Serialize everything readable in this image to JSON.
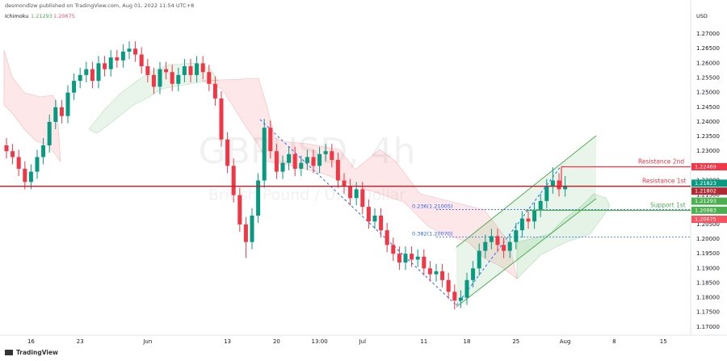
{
  "header": {
    "published": "desmondlzw published on TradingView.com, Aug 01, 2022 11:54 UTC+8",
    "footer": "TradingView"
  },
  "chart_data": {
    "type": "candlestick",
    "watermark": "GBPUSD, 4h",
    "watermark_subtitle": "British Pound / U.S. Dollar",
    "currency": "USD",
    "up_color": "#089981",
    "down_color": "#f23645",
    "indicator": {
      "name": "Ichimoku",
      "values": [
        1.21293,
        1.20675
      ],
      "colors": [
        "#4caf50",
        "#f7525f"
      ]
    },
    "categories": [
      null,
      null,
      null,
      null,
      "16",
      null,
      null,
      null,
      null,
      null,
      null,
      null,
      "23",
      null,
      null,
      null,
      null,
      null,
      null,
      null,
      null,
      null,
      null,
      "Jun",
      null,
      null,
      null,
      null,
      null,
      null,
      null,
      null,
      null,
      null,
      null,
      null,
      "13",
      null,
      null,
      null,
      null,
      null,
      null,
      null,
      "20",
      null,
      null,
      null,
      null,
      null,
      null,
      "13:00",
      null,
      null,
      null,
      null,
      null,
      null,
      "Jul",
      null,
      null,
      null,
      null,
      null,
      null,
      null,
      null,
      null,
      "11",
      null,
      null,
      null,
      null,
      null,
      null,
      "18",
      null,
      null,
      null,
      null,
      null,
      null,
      null,
      "25",
      null,
      null,
      null,
      null,
      null,
      null,
      null,
      "Aug",
      null,
      null,
      null,
      null,
      null,
      null,
      null,
      "8",
      null,
      null,
      null,
      null,
      null,
      null,
      null,
      "15"
    ],
    "open": [
      1.232,
      1.23,
      1.228,
      1.224,
      1.2195,
      1.223,
      1.228,
      1.232,
      1.24,
      1.245,
      1.242,
      1.25,
      1.254,
      1.256,
      1.258,
      1.254,
      1.26,
      1.258,
      1.262,
      1.261,
      1.264,
      1.265,
      1.263,
      1.259,
      1.256,
      1.252,
      1.258,
      1.257,
      1.253,
      1.256,
      1.259,
      1.256,
      1.26,
      1.257,
      1.253,
      1.248,
      1.234,
      1.225,
      1.215,
      1.205,
      1.199,
      1.208,
      1.22,
      1.238,
      1.23,
      1.223,
      1.226,
      1.229,
      1.224,
      1.226,
      1.228,
      1.225,
      1.229,
      1.23,
      1.227,
      1.22,
      1.218,
      1.214,
      1.217,
      1.211,
      1.206,
      1.208,
      1.203,
      1.198,
      1.195,
      1.192,
      1.195,
      1.193,
      1.194,
      1.19,
      1.188,
      1.189,
      1.186,
      1.182,
      1.179,
      1.18,
      1.186,
      1.19,
      1.196,
      1.199,
      1.201,
      1.198,
      1.196,
      1.199,
      1.203,
      1.207,
      1.206,
      1.21,
      1.213,
      1.218,
      1.22,
      1.217,
      null,
      null,
      null,
      null,
      null,
      null,
      null,
      null,
      null,
      null,
      null,
      null,
      null,
      null,
      null,
      null
    ],
    "high": [
      1.2345,
      1.2325,
      1.2305,
      1.2265,
      1.2255,
      1.2305,
      1.2345,
      1.2425,
      1.2475,
      1.2475,
      1.2525,
      1.2565,
      1.2585,
      1.2605,
      1.2605,
      1.2625,
      1.2625,
      1.2645,
      1.2645,
      1.2665,
      1.2675,
      1.2675,
      1.2655,
      1.2615,
      1.2585,
      1.2605,
      1.2605,
      1.2595,
      1.2585,
      1.2615,
      1.2615,
      1.2625,
      1.2625,
      1.2595,
      1.2555,
      1.2505,
      1.2365,
      1.2275,
      1.2175,
      1.2075,
      1.2105,
      1.2225,
      1.241,
      1.2405,
      1.2325,
      1.2285,
      1.2315,
      1.2315,
      1.2285,
      1.2305,
      1.2305,
      1.2315,
      1.2325,
      1.2325,
      1.2295,
      1.2225,
      1.2205,
      1.2195,
      1.2195,
      1.2135,
      1.2105,
      1.2105,
      1.2055,
      1.2005,
      1.1975,
      1.1975,
      1.1975,
      1.1965,
      1.1965,
      1.1925,
      1.1915,
      1.1915,
      1.1885,
      1.1845,
      1.1825,
      1.1885,
      1.1925,
      1.1985,
      1.2015,
      1.2035,
      1.2035,
      1.2005,
      1.2015,
      1.2055,
      1.2095,
      1.2095,
      1.2125,
      1.2155,
      1.2205,
      1.2245,
      1.2225,
      1.2215,
      null,
      null,
      null,
      null,
      null,
      null,
      null,
      null,
      null,
      null,
      null,
      null,
      null,
      null,
      null,
      null
    ],
    "low": [
      1.2275,
      1.2255,
      1.2215,
      1.217,
      1.217,
      1.2205,
      1.2255,
      1.2295,
      1.2375,
      1.2395,
      1.2395,
      1.2475,
      1.2515,
      1.2535,
      1.2515,
      1.2515,
      1.2555,
      1.2555,
      1.2585,
      1.2585,
      1.2615,
      1.2605,
      1.2565,
      1.2535,
      1.2495,
      1.2495,
      1.2545,
      1.2505,
      1.2505,
      1.2535,
      1.2535,
      1.2535,
      1.2545,
      1.2505,
      1.2455,
      1.2315,
      1.2225,
      1.2125,
      1.2025,
      1.1935,
      1.1965,
      1.2055,
      1.2175,
      1.2275,
      1.2205,
      1.2205,
      1.2235,
      1.2215,
      1.2215,
      1.2235,
      1.2225,
      1.2225,
      1.2265,
      1.2245,
      1.2175,
      1.2155,
      1.2115,
      1.2115,
      1.2085,
      1.2035,
      1.2035,
      1.2005,
      1.1955,
      1.1925,
      1.1895,
      1.1895,
      1.1905,
      1.1905,
      1.1875,
      1.1855,
      1.1855,
      1.1835,
      1.1795,
      1.176,
      1.1765,
      1.1775,
      1.1835,
      1.1875,
      1.1935,
      1.1965,
      1.1955,
      1.1935,
      1.1935,
      1.1965,
      1.2005,
      1.2035,
      1.2035,
      1.2075,
      1.2105,
      1.2155,
      1.2145,
      1.2145,
      null,
      null,
      null,
      null,
      null,
      null,
      null,
      null,
      null,
      null,
      null,
      null,
      null,
      null,
      null,
      null
    ],
    "close": [
      1.23,
      1.228,
      1.224,
      1.2195,
      1.223,
      1.228,
      1.232,
      1.24,
      1.245,
      1.242,
      1.25,
      1.254,
      1.256,
      1.258,
      1.254,
      1.26,
      1.258,
      1.262,
      1.261,
      1.264,
      1.265,
      1.263,
      1.259,
      1.256,
      1.252,
      1.258,
      1.257,
      1.253,
      1.256,
      1.259,
      1.256,
      1.26,
      1.257,
      1.253,
      1.248,
      1.234,
      1.225,
      1.215,
      1.205,
      1.199,
      1.208,
      1.22,
      1.238,
      1.23,
      1.223,
      1.226,
      1.229,
      1.224,
      1.226,
      1.228,
      1.225,
      1.229,
      1.23,
      1.227,
      1.22,
      1.218,
      1.214,
      1.217,
      1.211,
      1.206,
      1.208,
      1.203,
      1.198,
      1.195,
      1.192,
      1.195,
      1.193,
      1.194,
      1.19,
      1.188,
      1.189,
      1.186,
      1.182,
      1.179,
      1.18,
      1.186,
      1.19,
      1.196,
      1.199,
      1.201,
      1.198,
      1.196,
      1.199,
      1.203,
      1.207,
      1.206,
      1.21,
      1.213,
      1.218,
      1.22,
      1.217,
      1.21823,
      null,
      null,
      null,
      null,
      null,
      null,
      null,
      null,
      null,
      null,
      null,
      null,
      null,
      null,
      null,
      null
    ],
    "ylim": [
      1.1672,
      1.2783
    ],
    "yticks": [
      {
        "value": 1.17,
        "label": "1.17000"
      },
      {
        "value": 1.175,
        "label": "1.17500"
      },
      {
        "value": 1.18,
        "label": "1.18000"
      },
      {
        "value": 1.185,
        "label": "1.18500"
      },
      {
        "value": 1.19,
        "label": "1.19000"
      },
      {
        "value": 1.195,
        "label": "1.19500"
      },
      {
        "value": 1.2,
        "label": "1.20000"
      },
      {
        "value": 1.205,
        "label": "1.20500"
      },
      {
        "value": 1.21,
        "label": "1.21000"
      },
      {
        "value": 1.215,
        "label": "1.21500"
      },
      {
        "value": 1.22,
        "label": "1.22000"
      },
      {
        "value": 1.225,
        "label": "1.22500"
      },
      {
        "value": 1.23,
        "label": "1.23000"
      },
      {
        "value": 1.235,
        "label": "1.23500"
      },
      {
        "value": 1.24,
        "label": "1.24000"
      },
      {
        "value": 1.245,
        "label": "1.24500"
      },
      {
        "value": 1.25,
        "label": "1.25000"
      },
      {
        "value": 1.255,
        "label": "1.25500"
      },
      {
        "value": 1.26,
        "label": "1.26000"
      },
      {
        "value": 1.265,
        "label": "1.26500"
      },
      {
        "value": 1.27,
        "label": "1.27000"
      }
    ],
    "levels": [
      {
        "name": "Resistance 2nd",
        "value": 1.22469,
        "color": "#f23645"
      },
      {
        "name": "Resistance 1st",
        "value": 1.21802,
        "color": "#f23645"
      },
      {
        "name": "Support 1st",
        "value": 1.20983,
        "color": "#4caf50"
      }
    ],
    "fib_levels": [
      {
        "label": "0.236(1.21005)",
        "value": 1.21005
      },
      {
        "label": "0.382(1.20070)",
        "value": 1.2007
      }
    ],
    "fib_color": "#2962ff"
  }
}
